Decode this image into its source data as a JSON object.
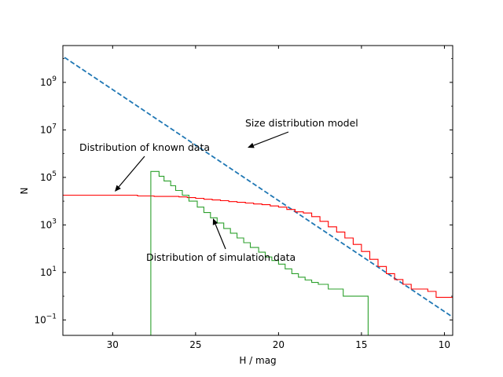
{
  "chart_data": {
    "type": "line",
    "title": "",
    "xlabel": "H / mag",
    "ylabel": "N",
    "xlim": [
      33,
      9.5
    ],
    "ylim_log10": [
      -1.65,
      10.55
    ],
    "y_scale": "log",
    "x_ticks": [
      30,
      25,
      20,
      15,
      10
    ],
    "y_ticks": [
      {
        "exp": 9,
        "label_base": "10",
        "label_exp": "9"
      },
      {
        "exp": 7,
        "label_base": "10",
        "label_exp": "7"
      },
      {
        "exp": 5,
        "label_base": "10",
        "label_exp": "5"
      },
      {
        "exp": 3,
        "label_base": "10",
        "label_exp": "3"
      },
      {
        "exp": 1,
        "label_base": "10",
        "label_exp": "1"
      },
      {
        "exp": -1,
        "label_base": "10",
        "label_exp": "−1"
      }
    ],
    "grid": false,
    "series": [
      {
        "style": "dashed line",
        "color": "#1f77b4",
        "x": [
          32.9,
          9.5
        ],
        "log10_y": [
          10.05,
          -0.88
        ]
      },
      {
        "style": "step",
        "color": "#ff0000",
        "x_edges": [
          33.0,
          30.0,
          28.5,
          27.5,
          27.0,
          26.5,
          26.0,
          25.5,
          25.0,
          24.5,
          24.0,
          23.5,
          23.0,
          22.5,
          22.0,
          21.5,
          21.0,
          20.5,
          20.0,
          19.5,
          19.0,
          18.5,
          18.0,
          17.5,
          17.0,
          16.5,
          16.0,
          15.5,
          15.0,
          14.5,
          14.0,
          13.5,
          13.0,
          12.5,
          12.0,
          11.5,
          11.0,
          10.5,
          9.5
        ],
        "log10_y": [
          4.25,
          4.25,
          4.22,
          4.2,
          4.2,
          4.2,
          4.18,
          4.15,
          4.12,
          4.08,
          4.05,
          4.02,
          3.98,
          3.95,
          3.92,
          3.88,
          3.85,
          3.8,
          3.75,
          3.65,
          3.55,
          3.5,
          3.35,
          3.15,
          2.92,
          2.7,
          2.45,
          2.18,
          1.88,
          1.55,
          1.25,
          0.95,
          0.7,
          0.5,
          0.3,
          0.3,
          0.2,
          -0.05
        ]
      },
      {
        "style": "step",
        "color": "#2ca02c",
        "x_edges": [
          27.7,
          27.2,
          26.9,
          26.5,
          26.2,
          25.8,
          25.4,
          24.9,
          24.5,
          24.1,
          23.7,
          23.3,
          22.9,
          22.5,
          22.1,
          21.7,
          21.2,
          20.8,
          20.4,
          20.0,
          19.6,
          19.2,
          18.8,
          18.4,
          18.0,
          17.6,
          17.0,
          16.1,
          15.4,
          14.6
        ],
        "log10_y": [
          5.25,
          5.05,
          4.85,
          4.65,
          4.45,
          4.25,
          4.0,
          3.75,
          3.52,
          3.3,
          3.08,
          2.85,
          2.65,
          2.45,
          2.25,
          2.05,
          1.85,
          1.65,
          1.5,
          1.35,
          1.15,
          0.95,
          0.8,
          0.68,
          0.58,
          0.5,
          0.3,
          0.0,
          0.0
        ]
      }
    ],
    "annotations": [
      {
        "text": "Size distribution model",
        "x": 22.0,
        "log10_y": 6.1,
        "arrow_to_x": 22.0,
        "arrow_to_log10_y": 6.05
      },
      {
        "text": "Distribution of known data",
        "x": 30.0,
        "log10_y": 4.1,
        "arrow_to_x": 30.0,
        "arrow_to_log10_y": 4.08
      },
      {
        "text": "Distribution of simulation data",
        "x": 24.0,
        "log10_y": 2.95,
        "arrow_to_x": 24.0,
        "arrow_to_log10_y": 2.95
      }
    ]
  }
}
